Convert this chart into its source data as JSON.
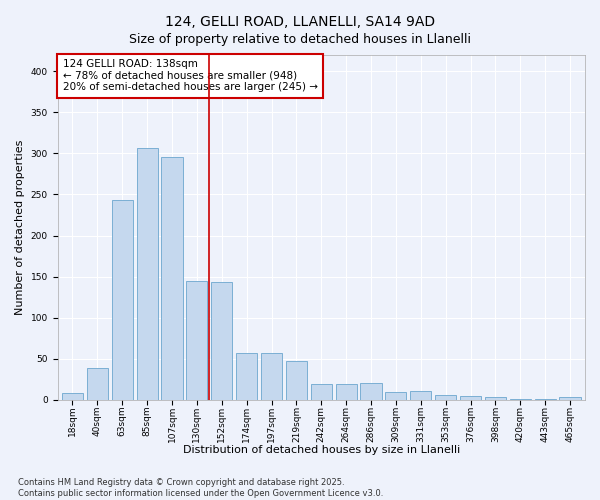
{
  "title": "124, GELLI ROAD, LLANELLI, SA14 9AD",
  "subtitle": "Size of property relative to detached houses in Llanelli",
  "xlabel": "Distribution of detached houses by size in Llanelli",
  "ylabel": "Number of detached properties",
  "bar_color": "#c5d8ee",
  "bar_edge_color": "#7bafd4",
  "background_color": "#eef2fb",
  "plot_bg_color": "#eef2fb",
  "categories": [
    "18sqm",
    "40sqm",
    "63sqm",
    "85sqm",
    "107sqm",
    "130sqm",
    "152sqm",
    "174sqm",
    "197sqm",
    "219sqm",
    "242sqm",
    "264sqm",
    "286sqm",
    "309sqm",
    "331sqm",
    "353sqm",
    "376sqm",
    "398sqm",
    "420sqm",
    "443sqm",
    "465sqm"
  ],
  "values": [
    8,
    38,
    243,
    307,
    296,
    144,
    143,
    57,
    57,
    47,
    19,
    19,
    20,
    9,
    10,
    6,
    4,
    3,
    1,
    1,
    3
  ],
  "vline_x": 5.5,
  "vline_color": "#cc0000",
  "annotation_text": "124 GELLI ROAD: 138sqm\n← 78% of detached houses are smaller (948)\n20% of semi-detached houses are larger (245) →",
  "annotation_box_color": "#cc0000",
  "ylim": [
    0,
    420
  ],
  "yticks": [
    0,
    50,
    100,
    150,
    200,
    250,
    300,
    350,
    400
  ],
  "footer_text": "Contains HM Land Registry data © Crown copyright and database right 2025.\nContains public sector information licensed under the Open Government Licence v3.0.",
  "title_fontsize": 10,
  "axis_label_fontsize": 8,
  "tick_fontsize": 6.5,
  "footer_fontsize": 6,
  "annotation_fontsize": 7.5
}
